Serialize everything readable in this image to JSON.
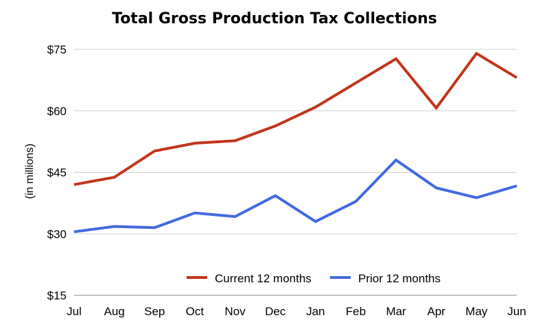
{
  "chart_data": {
    "type": "line",
    "title": "Total Gross Production Tax Collections",
    "xlabel": "",
    "ylabel": "(in millions)",
    "categories": [
      "Jul",
      "Aug",
      "Sep",
      "Oct",
      "Nov",
      "Dec",
      "Jan",
      "Feb",
      "Mar",
      "Apr",
      "May",
      "Jun"
    ],
    "ylim": [
      15,
      75
    ],
    "yticks": [
      15,
      30,
      45,
      60,
      75
    ],
    "ytick_labels": [
      "$15",
      "$30",
      "$45",
      "$60",
      "$75"
    ],
    "grid": true,
    "legend_position": "bottom-center",
    "series": [
      {
        "name": "Current 12 months",
        "color": "#c0351a",
        "values": [
          42,
          43.8,
          50.2,
          52.1,
          52.7,
          56.3,
          60.9,
          66.8,
          72.7,
          60.7,
          74,
          68.1
        ]
      },
      {
        "name": "Prior 12 months",
        "color": "#4169e1",
        "values": [
          30.5,
          31.8,
          31.5,
          35.1,
          34.2,
          39.3,
          33,
          37.9,
          48,
          41.2,
          38.8,
          41.7
        ]
      }
    ]
  }
}
